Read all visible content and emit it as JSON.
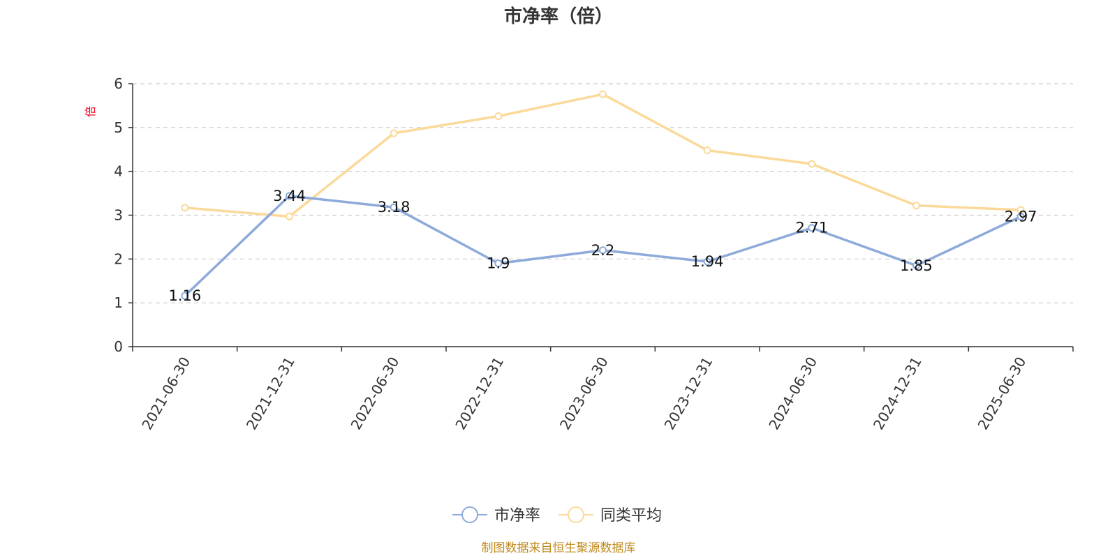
{
  "chart_data": {
    "type": "line",
    "title": "市净率（倍）",
    "ylabel": "倍",
    "ylim": [
      0,
      6
    ],
    "yticks": [
      0,
      1,
      2,
      3,
      4,
      5,
      6
    ],
    "grid": true,
    "legend_position": "bottom",
    "categories": [
      "2021-06-30",
      "2021-12-31",
      "2022-06-30",
      "2022-12-31",
      "2023-06-30",
      "2023-12-31",
      "2024-06-30",
      "2024-12-31",
      "2025-06-30"
    ],
    "series": [
      {
        "name": "市净率",
        "color": "#8eaadb",
        "values": [
          1.16,
          3.44,
          3.18,
          1.9,
          2.2,
          1.94,
          2.71,
          1.85,
          2.97
        ],
        "labels": [
          "1.16",
          "3.44",
          "3.18",
          "1.9",
          "2.2",
          "1.94",
          "2.71",
          "1.85",
          "2.97"
        ]
      },
      {
        "name": "同类平均",
        "color": "#fbd999",
        "values": [
          3.17,
          2.97,
          4.87,
          5.26,
          5.76,
          4.48,
          4.17,
          3.22,
          3.12
        ]
      }
    ]
  },
  "source_note": "制图数据来自恒生聚源数据库"
}
